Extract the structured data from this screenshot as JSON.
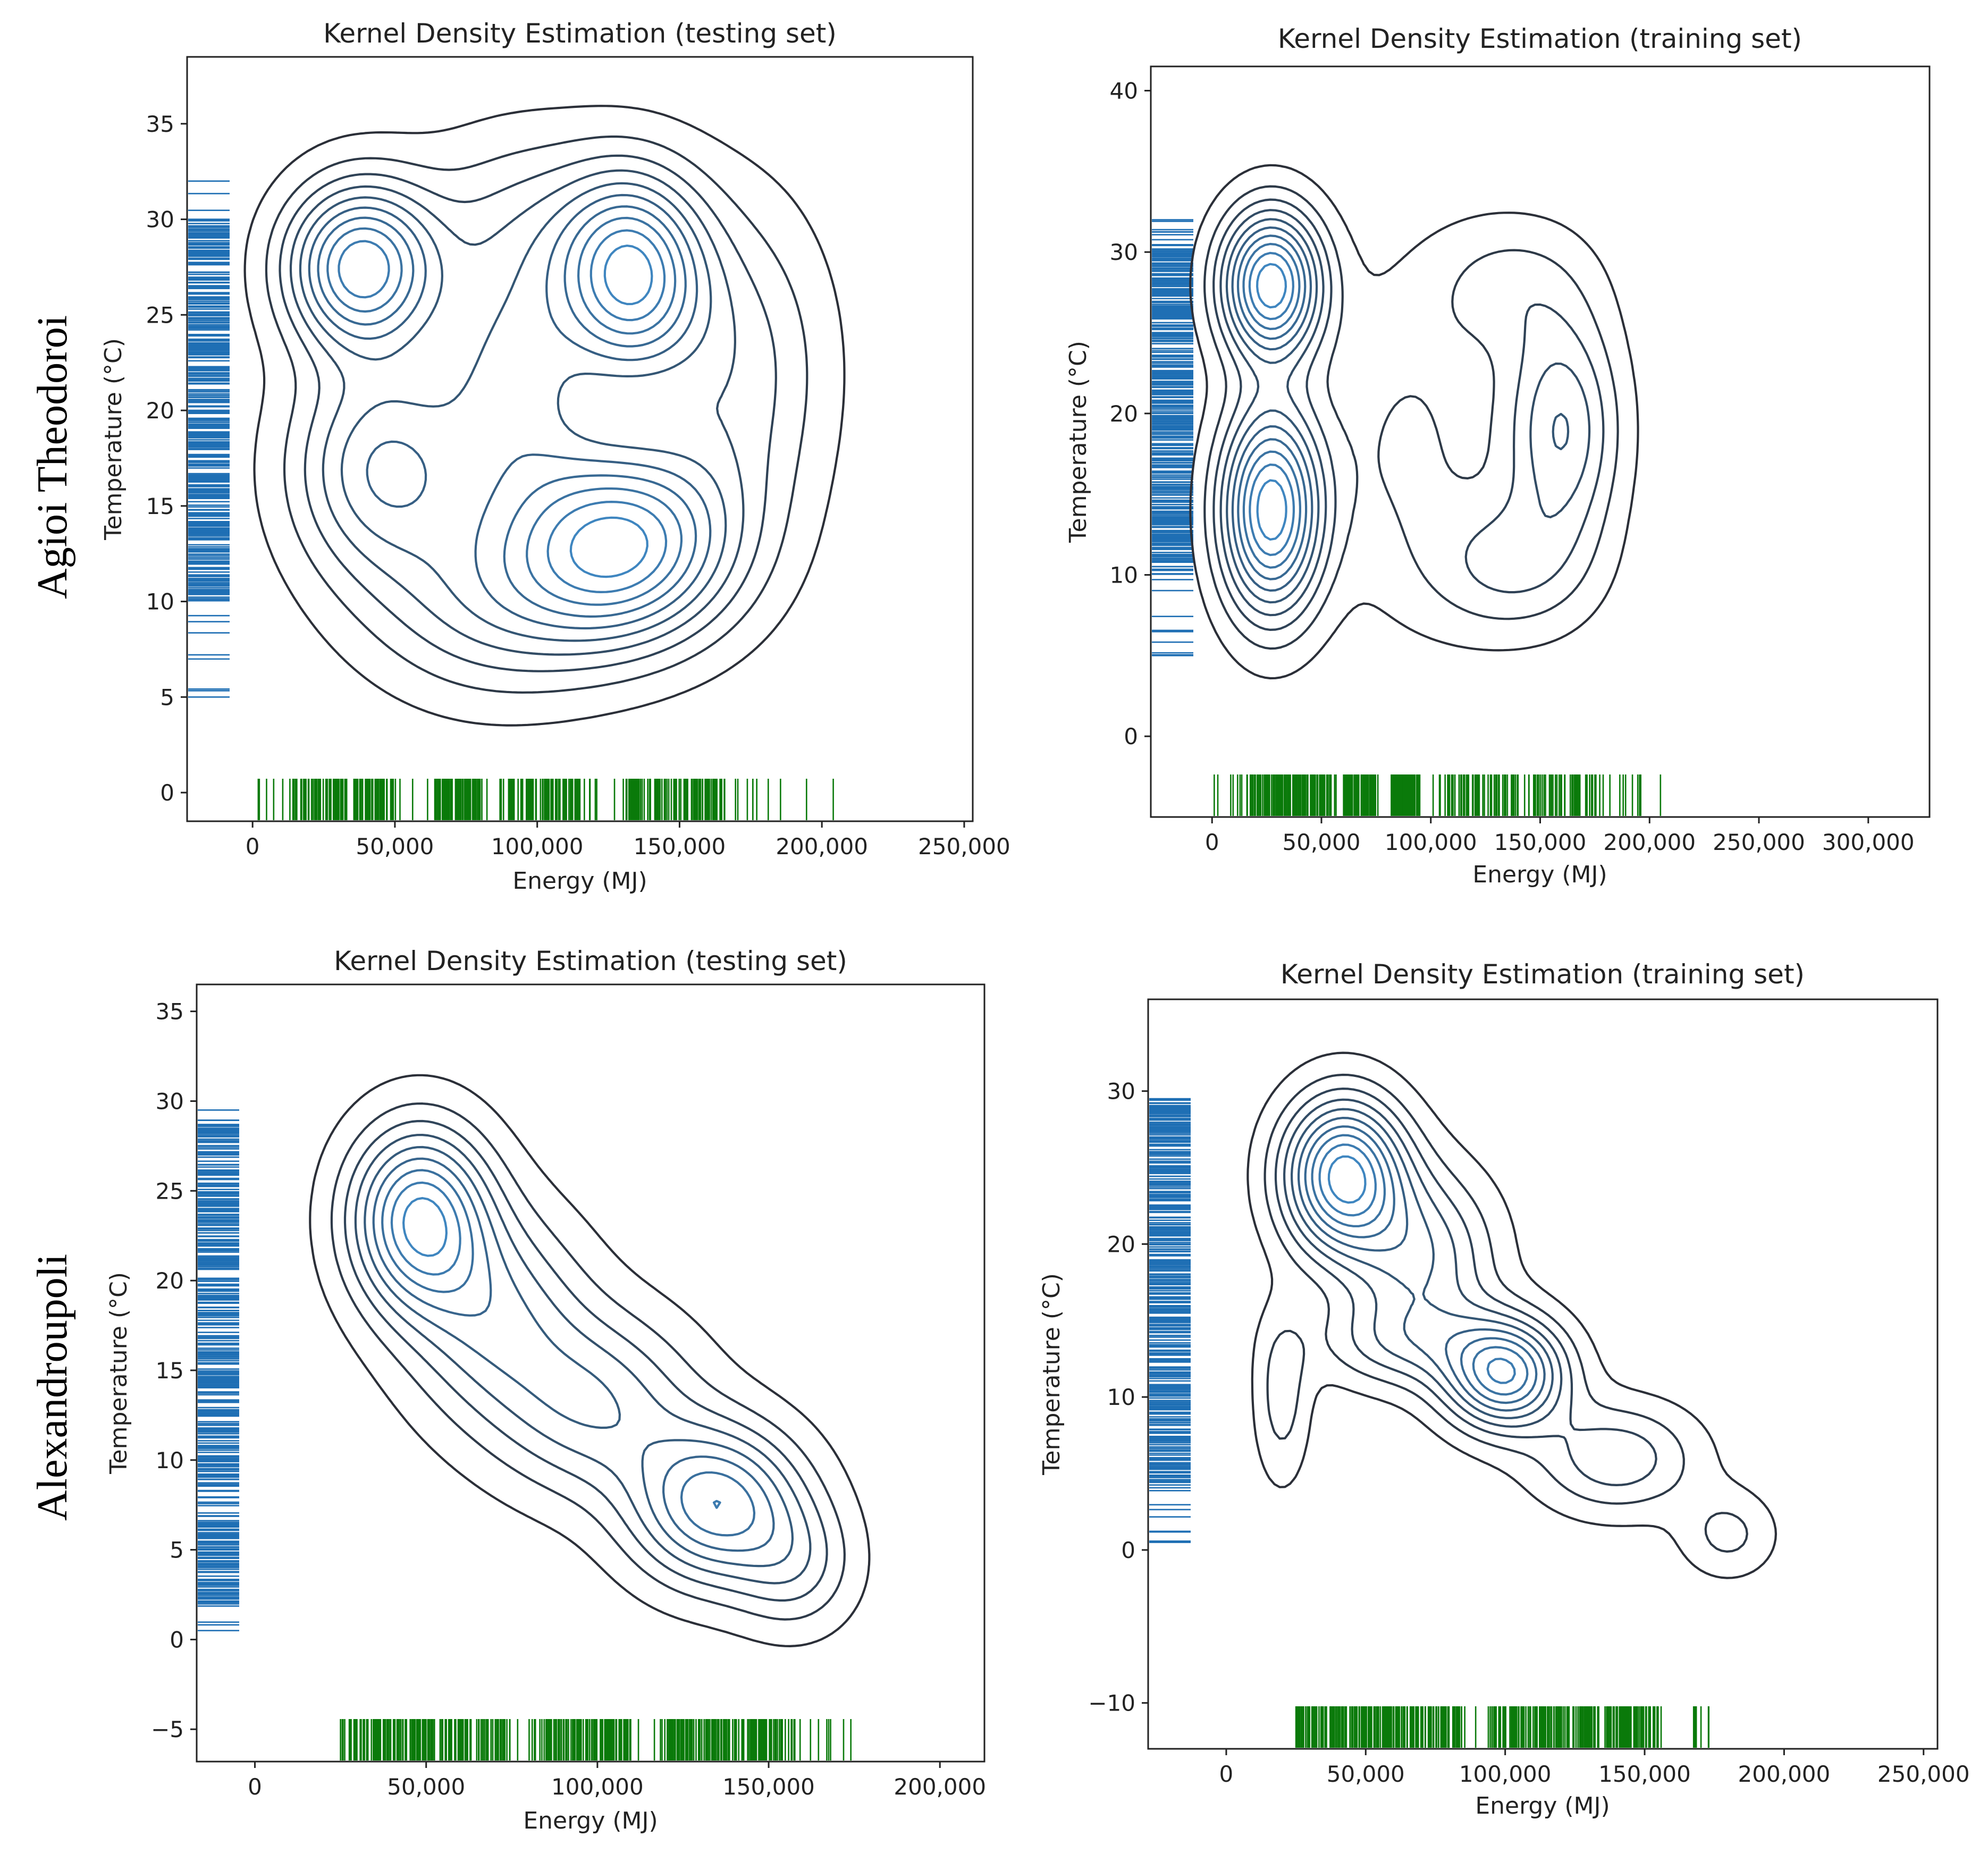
{
  "figure": {
    "row_labels": [
      "Agioi Theodoroi",
      "Alexandroupoli"
    ]
  },
  "colors": {
    "contour_outer": "#2b2f38",
    "contour_inner": "#3f86c0",
    "rug_y": "#1f6fb4",
    "rug_x": "#0a7a0a",
    "axis": "#222222"
  },
  "chart_data": [
    {
      "type": "kde_contour",
      "title": "Kernel Density Estimation (testing set)",
      "xlabel": "Energy (MJ)",
      "ylabel": "Temperature (°C)",
      "xlim": [
        -23000,
        253000
      ],
      "ylim": [
        -1.5,
        38.5
      ],
      "xticks": [
        0,
        50000,
        100000,
        150000,
        200000,
        250000
      ],
      "xtick_labels": [
        "0",
        "50,000",
        "100,000",
        "150,000",
        "200,000",
        "250,000"
      ],
      "yticks": [
        0,
        5,
        10,
        15,
        20,
        25,
        30,
        35
      ],
      "ytick_labels": [
        "0",
        "5",
        "10",
        "15",
        "20",
        "25",
        "30",
        "35"
      ],
      "levels": 10,
      "components": [
        {
          "x": 38000,
          "y": 27.5,
          "sx": 18000,
          "sy": 3.0,
          "w": 1.0
        },
        {
          "x": 133000,
          "y": 27.0,
          "sx": 17000,
          "sy": 3.5,
          "w": 0.95
        },
        {
          "x": 130000,
          "y": 13.0,
          "sx": 26000,
          "sy": 3.5,
          "w": 1.0
        },
        {
          "x": 45000,
          "y": 17.0,
          "sx": 22000,
          "sy": 4.0,
          "w": 0.6
        },
        {
          "x": 92000,
          "y": 21.5,
          "sx": 20000,
          "sy": 5.0,
          "w": 0.5
        },
        {
          "x": 85000,
          "y": 10.0,
          "sx": 30000,
          "sy": 3.5,
          "w": 0.4
        },
        {
          "x": 170000,
          "y": 22.0,
          "sx": 22000,
          "sy": 6.0,
          "w": 0.35
        },
        {
          "x": 100000,
          "y": 30.0,
          "sx": 30000,
          "sy": 3.5,
          "w": 0.25
        }
      ],
      "rug_x": {
        "min": 2000,
        "max": 204000,
        "dense": [
          [
            13000,
            50000
          ],
          [
            64000,
            80000
          ],
          [
            87000,
            115000
          ],
          [
            130000,
            165000
          ]
        ]
      },
      "rug_y": {
        "min": 5.0,
        "max": 32.0,
        "dense": [
          [
            10.0,
            30.0
          ]
        ]
      }
    },
    {
      "type": "kde_contour",
      "title": "Kernel Density Estimation (training set)",
      "xlabel": "Energy (MJ)",
      "ylabel": "Temperature (°C)",
      "xlim": [
        -28000,
        328000
      ],
      "ylim": [
        -5,
        41.5
      ],
      "xticks": [
        0,
        50000,
        100000,
        150000,
        200000,
        250000,
        300000
      ],
      "xtick_labels": [
        "0",
        "50,000",
        "100,000",
        "150,000",
        "200,000",
        "250,000",
        "300,000"
      ],
      "yticks": [
        0,
        10,
        20,
        30,
        40
      ],
      "ytick_labels": [
        "0",
        "10",
        "20",
        "30",
        "40"
      ],
      "levels": 10,
      "components": [
        {
          "x": 27000,
          "y": 28.0,
          "sx": 16000,
          "sy": 3.2,
          "w": 1.0
        },
        {
          "x": 27000,
          "y": 14.0,
          "sx": 16000,
          "sy": 4.5,
          "w": 1.0
        },
        {
          "x": 160000,
          "y": 19.0,
          "sx": 18000,
          "sy": 5.0,
          "w": 0.45
        },
        {
          "x": 135000,
          "y": 10.5,
          "sx": 25000,
          "sy": 3.0,
          "w": 0.25
        },
        {
          "x": 90000,
          "y": 18.0,
          "sx": 28000,
          "sy": 7.0,
          "w": 0.18
        },
        {
          "x": 135000,
          "y": 28.0,
          "sx": 25000,
          "sy": 3.0,
          "w": 0.18
        }
      ],
      "rug_x": {
        "min": 1000,
        "max": 205000,
        "dense": [
          [
            16000,
            55000
          ],
          [
            60000,
            75000
          ],
          [
            82000,
            95000
          ],
          [
            108000,
            178000
          ]
        ]
      },
      "rug_y": {
        "min": 5.0,
        "max": 32.0,
        "dense": [
          [
            10.0,
            30.5
          ]
        ]
      }
    },
    {
      "type": "kde_contour",
      "title": "Kernel Density Estimation (testing set)",
      "xlabel": "Energy (MJ)",
      "ylabel": "Temperature (°C)",
      "xlim": [
        -17000,
        213000
      ],
      "ylim": [
        -6.8,
        36.5
      ],
      "xticks": [
        0,
        50000,
        100000,
        150000,
        200000
      ],
      "xtick_labels": [
        "0",
        "50,000",
        "100,000",
        "150,000",
        "200,000"
      ],
      "yticks": [
        -5,
        0,
        5,
        10,
        15,
        20,
        25,
        30,
        35
      ],
      "ytick_labels": [
        "−5",
        "0",
        "5",
        "10",
        "15",
        "20",
        "25",
        "30",
        "35"
      ],
      "levels": 9,
      "components": [
        {
          "x": 48000,
          "y": 23.5,
          "sx": 14000,
          "sy": 3.5,
          "w": 1.0
        },
        {
          "x": 70000,
          "y": 18.0,
          "sx": 18000,
          "sy": 4.0,
          "w": 0.5
        },
        {
          "x": 100000,
          "y": 13.0,
          "sx": 20000,
          "sy": 3.5,
          "w": 0.5
        },
        {
          "x": 135000,
          "y": 7.5,
          "sx": 17000,
          "sy": 3.0,
          "w": 0.85
        },
        {
          "x": 158000,
          "y": 4.0,
          "sx": 12000,
          "sy": 2.5,
          "w": 0.3
        }
      ],
      "rug_x": {
        "min": 25000,
        "max": 174000,
        "dense": [
          [
            25000,
            75000
          ],
          [
            85000,
            110000
          ],
          [
            120000,
            158000
          ]
        ]
      },
      "rug_y": {
        "min": 0.5,
        "max": 29.5,
        "dense": [
          [
            2.0,
            29.0
          ]
        ]
      }
    },
    {
      "type": "kde_contour",
      "title": "Kernel Density Estimation (training set)",
      "xlabel": "Energy (MJ)",
      "ylabel": "Temperature (°C)",
      "xlim": [
        -28000,
        255000
      ],
      "ylim": [
        -13,
        36
      ],
      "xticks": [
        0,
        50000,
        100000,
        150000,
        200000,
        250000
      ],
      "xtick_labels": [
        "0",
        "50,000",
        "100,000",
        "150,000",
        "200,000",
        "250,000"
      ],
      "yticks": [
        -10,
        0,
        10,
        20,
        30
      ],
      "ytick_labels": [
        "−10",
        "0",
        "10",
        "20",
        "30"
      ],
      "levels": 10,
      "components": [
        {
          "x": 42000,
          "y": 24.5,
          "sx": 15000,
          "sy": 3.5,
          "w": 1.0
        },
        {
          "x": 70000,
          "y": 19.0,
          "sx": 18000,
          "sy": 4.0,
          "w": 0.45
        },
        {
          "x": 100000,
          "y": 11.5,
          "sx": 15000,
          "sy": 2.5,
          "w": 0.85
        },
        {
          "x": 140000,
          "y": 6.0,
          "sx": 20000,
          "sy": 2.5,
          "w": 0.35
        },
        {
          "x": 180000,
          "y": 1.0,
          "sx": 12000,
          "sy": 2.0,
          "w": 0.2
        },
        {
          "x": 20000,
          "y": 10.0,
          "sx": 7000,
          "sy": 4.0,
          "w": 0.22
        },
        {
          "x": 62000,
          "y": 13.5,
          "sx": 22000,
          "sy": 2.0,
          "w": 0.25
        }
      ],
      "rug_x": {
        "min": 25000,
        "max": 173000,
        "dense": [
          [
            25000,
            85000
          ],
          [
            95000,
            155000
          ]
        ]
      },
      "rug_y": {
        "min": 0.5,
        "max": 29.5,
        "dense": [
          [
            4.0,
            29.5
          ]
        ]
      }
    }
  ]
}
